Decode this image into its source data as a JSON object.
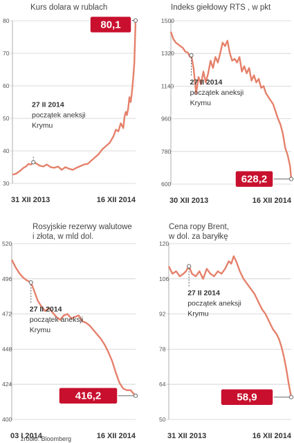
{
  "source": "źródło: Bloomberg",
  "chart_data": [
    {
      "type": "line",
      "title_lines": [
        "Kurs dolara w rublach"
      ],
      "ylim": [
        30,
        80
      ],
      "yticks": [
        "30",
        "40",
        "50",
        "60",
        "70",
        "80"
      ],
      "x_labels": [
        "31 XII 2013",
        "16 XII 2014"
      ],
      "annotation": {
        "lines": [
          "27 II 2014",
          "początek aneksji",
          "Krymu"
        ],
        "x": 0.17,
        "y": 36.5
      },
      "last_value_label": "80,1",
      "series": [
        {
          "x": [
            0,
            0.03,
            0.06,
            0.09,
            0.11,
            0.13,
            0.15,
            0.17,
            0.19,
            0.22,
            0.25,
            0.28,
            0.31,
            0.34,
            0.37,
            0.4,
            0.43,
            0.46,
            0.49,
            0.52,
            0.55,
            0.58,
            0.61,
            0.64,
            0.67,
            0.7,
            0.73,
            0.76,
            0.79,
            0.82,
            0.84,
            0.86,
            0.88,
            0.9,
            0.91,
            0.92,
            0.93,
            0.94,
            0.95,
            0.96,
            0.97,
            0.98,
            0.99,
            1.0
          ],
          "y": [
            32.7,
            33.0,
            33.8,
            34.8,
            35.2,
            36.0,
            35.8,
            36.5,
            36.2,
            35.5,
            35.2,
            35.8,
            35.0,
            34.8,
            35.2,
            34.2,
            35.0,
            34.5,
            34.2,
            34.8,
            35.3,
            35.8,
            36.0,
            37.0,
            38.0,
            39.0,
            40.5,
            41.5,
            42.5,
            44.5,
            46.5,
            46.0,
            48.5,
            47.0,
            50.5,
            52.0,
            51.0,
            53.0,
            56.5,
            55.0,
            58.0,
            62.0,
            67.0,
            80.1
          ]
        }
      ]
    },
    {
      "type": "line",
      "title_lines": [
        "Indeks giełdowy RTS , w pkt"
      ],
      "ylim": [
        600,
        1500
      ],
      "yticks": [
        "600",
        "780",
        "960",
        "1140",
        "1320",
        "1500"
      ],
      "x_labels": [
        "30 XII 2013",
        "16 XII 2014"
      ],
      "annotation": {
        "lines": [
          "27 II 2014",
          "początek aneksji",
          "Krymu"
        ],
        "x": 0.17,
        "y": 1310
      },
      "last_value_label": "628,2",
      "series": [
        {
          "x": [
            0,
            0.02,
            0.04,
            0.06,
            0.08,
            0.1,
            0.12,
            0.14,
            0.16,
            0.17,
            0.19,
            0.21,
            0.23,
            0.25,
            0.27,
            0.29,
            0.31,
            0.33,
            0.35,
            0.37,
            0.39,
            0.41,
            0.43,
            0.45,
            0.47,
            0.49,
            0.51,
            0.53,
            0.55,
            0.57,
            0.59,
            0.61,
            0.63,
            0.65,
            0.67,
            0.69,
            0.71,
            0.73,
            0.75,
            0.77,
            0.79,
            0.81,
            0.83,
            0.85,
            0.87,
            0.89,
            0.91,
            0.93,
            0.95,
            0.97,
            0.99,
            1.0
          ],
          "y": [
            1440,
            1400,
            1380,
            1370,
            1360,
            1350,
            1330,
            1325,
            1300,
            1310,
            1230,
            1100,
            1190,
            1150,
            1220,
            1160,
            1210,
            1280,
            1240,
            1300,
            1270,
            1320,
            1380,
            1360,
            1390,
            1320,
            1280,
            1290,
            1270,
            1300,
            1220,
            1250,
            1210,
            1240,
            1170,
            1200,
            1160,
            1180,
            1130,
            1140,
            1100,
            1080,
            1060,
            1040,
            1000,
            960,
            930,
            880,
            800,
            760,
            700,
            628.2
          ]
        }
      ]
    },
    {
      "type": "line",
      "title_lines": [
        "Rosyjskie rezerwy walutowe",
        "i złota, w mld dol."
      ],
      "ylim": [
        400,
        520
      ],
      "yticks": [
        "400",
        "424",
        "448",
        "472",
        "496",
        "520"
      ],
      "x_labels": [
        "03 I 2014",
        "16 XII 2014"
      ],
      "annotation": {
        "lines": [
          "27 II 2014",
          "początek aneksji",
          "Krymu"
        ],
        "x": 0.155,
        "y": 493.5
      },
      "last_value_label": "416,2",
      "series": [
        {
          "x": [
            0,
            0.03,
            0.06,
            0.09,
            0.12,
            0.155,
            0.18,
            0.21,
            0.24,
            0.27,
            0.3,
            0.33,
            0.36,
            0.39,
            0.42,
            0.45,
            0.48,
            0.51,
            0.54,
            0.57,
            0.6,
            0.63,
            0.66,
            0.69,
            0.72,
            0.75,
            0.78,
            0.81,
            0.84,
            0.87,
            0.9,
            0.93,
            0.96,
            0.98,
            1.0
          ],
          "y": [
            509,
            504,
            500,
            497,
            495,
            493.5,
            488,
            481,
            477,
            474,
            476,
            473,
            470,
            468,
            471,
            472,
            469,
            470,
            471,
            467,
            466,
            464,
            461,
            458,
            455,
            451,
            446,
            440,
            432,
            425,
            421,
            420,
            420,
            418,
            416.2
          ]
        }
      ]
    },
    {
      "type": "line",
      "title_lines": [
        "Cena ropy Brent,",
        "w dol. za baryłkę"
      ],
      "ylim": [
        50,
        120
      ],
      "yticks": [
        "50",
        "64",
        "78",
        "92",
        "106",
        "120"
      ],
      "x_labels": [
        "31 XII 2013",
        "16 XII 2014"
      ],
      "annotation": {
        "lines": [
          "27 II 2014",
          "początek aneksji",
          "Krymu"
        ],
        "x": 0.165,
        "y": 111
      },
      "last_value_label": "58,9",
      "series": [
        {
          "x": [
            0,
            0.03,
            0.06,
            0.09,
            0.12,
            0.14,
            0.165,
            0.19,
            0.22,
            0.25,
            0.28,
            0.31,
            0.34,
            0.37,
            0.4,
            0.43,
            0.46,
            0.49,
            0.51,
            0.53,
            0.55,
            0.58,
            0.61,
            0.64,
            0.67,
            0.7,
            0.73,
            0.76,
            0.79,
            0.82,
            0.85,
            0.88,
            0.9,
            0.92,
            0.94,
            0.96,
            0.98,
            1.0
          ],
          "y": [
            111,
            108,
            109,
            107,
            108,
            109,
            111,
            108,
            107,
            109,
            106,
            110,
            108,
            107,
            109,
            108,
            110,
            113,
            112,
            115,
            113,
            109,
            106,
            104,
            102,
            100,
            97,
            94,
            92,
            89,
            86,
            84,
            82,
            79,
            75,
            70,
            64,
            58.9
          ]
        }
      ]
    }
  ]
}
